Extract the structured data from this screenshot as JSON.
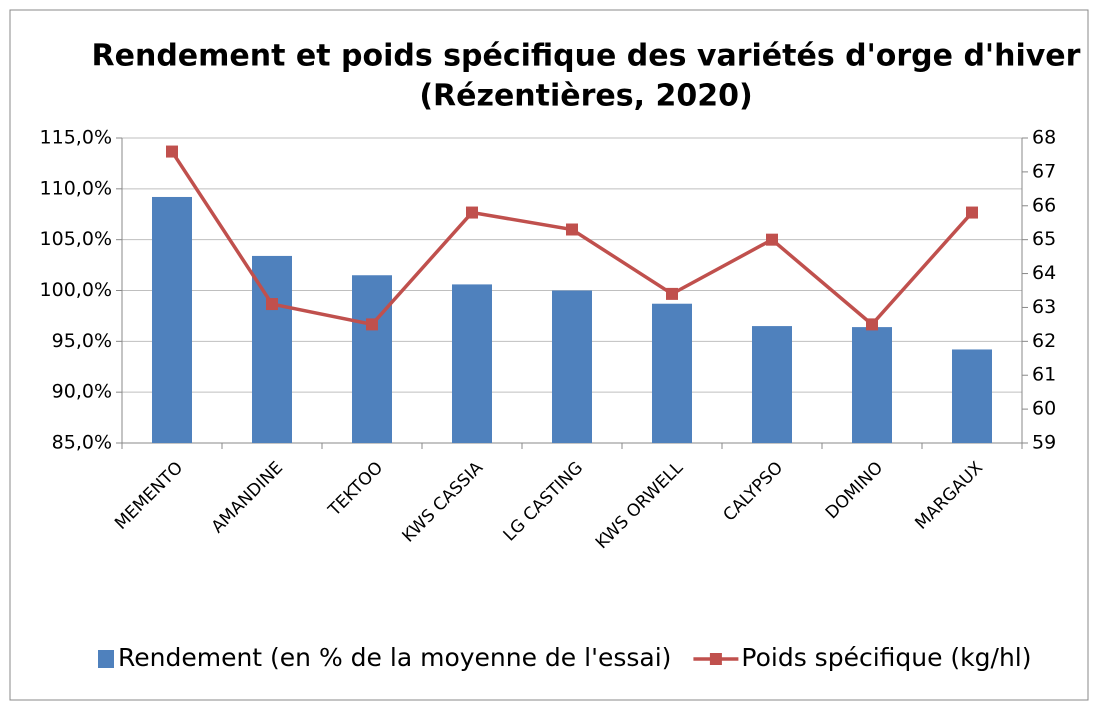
{
  "chart_data": {
    "type": "bar-line",
    "title": [
      "Rendement et poids spécifique des variétés d'orge d'hiver",
      "(Rézentières, 2020)"
    ],
    "categories": [
      "MEMENTO",
      "AMANDINE",
      "TEKTOO",
      "KWS CASSIA",
      "LG CASTING",
      "KWS ORWELL",
      "CALYPSO",
      "DOMINO",
      "MARGAUX"
    ],
    "series": [
      {
        "name": "Rendement (en % de la moyenne de l'essai)",
        "type": "bar",
        "color": "#4f81bd",
        "axis": "y",
        "values": [
          109.2,
          103.4,
          101.5,
          100.6,
          100.0,
          98.7,
          96.5,
          96.4,
          94.2
        ]
      },
      {
        "name": "Poids spécifique (kg/hl)",
        "type": "line",
        "color": "#c0504d",
        "axis": "y2",
        "values": [
          67.6,
          63.1,
          62.5,
          65.8,
          65.3,
          63.4,
          65.0,
          62.5,
          65.8
        ]
      }
    ],
    "ylim": [
      85,
      115
    ],
    "yticks": [
      {
        "value": 85,
        "label": "85,0%"
      },
      {
        "value": 90,
        "label": "90,0%"
      },
      {
        "value": 95,
        "label": "95,0%"
      },
      {
        "value": 100,
        "label": "100,0%"
      },
      {
        "value": 105,
        "label": "105,0%"
      },
      {
        "value": 110,
        "label": "110,0%"
      },
      {
        "value": 115,
        "label": "115,0%"
      }
    ],
    "y2lim": [
      59,
      68
    ],
    "y2ticks": [
      59,
      60,
      61,
      62,
      63,
      64,
      65,
      66,
      67,
      68
    ],
    "grid": true,
    "legend": "bottom"
  }
}
